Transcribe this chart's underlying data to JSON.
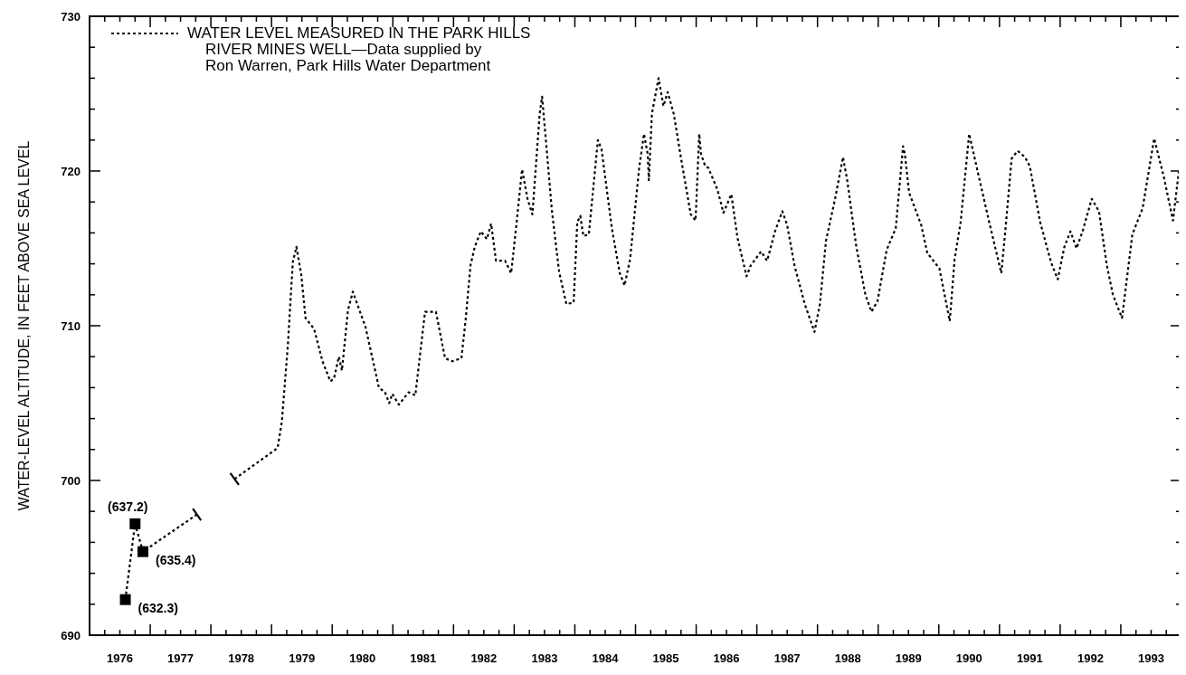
{
  "chart_data": {
    "type": "line",
    "ylabel": "WATER-LEVEL ALTITUDE, IN FEET ABOVE SEA LEVEL",
    "xlim": [
      1976,
      1994
    ],
    "ylim": [
      690,
      730
    ],
    "y2lim": [
      630,
      670
    ],
    "xticks": [
      {
        "value": 1976,
        "label": null
      },
      {
        "value": 1976.25,
        "label": null
      },
      {
        "value": 1976.5,
        "label": "1976"
      },
      {
        "value": 1976.75,
        "label": null
      },
      {
        "value": 1977,
        "label": null
      },
      {
        "value": 1977.25,
        "label": null
      },
      {
        "value": 1977.5,
        "label": "1977"
      },
      {
        "value": 1977.75,
        "label": null
      },
      {
        "value": 1978,
        "label": null
      },
      {
        "value": 1978.25,
        "label": null
      },
      {
        "value": 1978.5,
        "label": "1978"
      },
      {
        "value": 1978.75,
        "label": null
      },
      {
        "value": 1979,
        "label": null
      },
      {
        "value": 1979.25,
        "label": null
      },
      {
        "value": 1979.5,
        "label": "1979"
      },
      {
        "value": 1979.75,
        "label": null
      },
      {
        "value": 1980,
        "label": null
      },
      {
        "value": 1980.25,
        "label": null
      },
      {
        "value": 1980.5,
        "label": "1980"
      },
      {
        "value": 1980.75,
        "label": null
      },
      {
        "value": 1981,
        "label": null
      },
      {
        "value": 1981.25,
        "label": null
      },
      {
        "value": 1981.5,
        "label": "1981"
      },
      {
        "value": 1981.75,
        "label": null
      },
      {
        "value": 1982,
        "label": null
      },
      {
        "value": 1982.25,
        "label": null
      },
      {
        "value": 1982.5,
        "label": "1982"
      },
      {
        "value": 1982.75,
        "label": null
      },
      {
        "value": 1983,
        "label": null
      },
      {
        "value": 1983.25,
        "label": null
      },
      {
        "value": 1983.5,
        "label": "1983"
      },
      {
        "value": 1983.75,
        "label": null
      },
      {
        "value": 1984,
        "label": null
      },
      {
        "value": 1984.25,
        "label": null
      },
      {
        "value": 1984.5,
        "label": "1984"
      },
      {
        "value": 1984.75,
        "label": null
      },
      {
        "value": 1985,
        "label": null
      },
      {
        "value": 1985.25,
        "label": null
      },
      {
        "value": 1985.5,
        "label": "1985"
      },
      {
        "value": 1985.75,
        "label": null
      },
      {
        "value": 1986,
        "label": null
      },
      {
        "value": 1986.25,
        "label": null
      },
      {
        "value": 1986.5,
        "label": "1986"
      },
      {
        "value": 1986.75,
        "label": null
      },
      {
        "value": 1987,
        "label": null
      },
      {
        "value": 1987.25,
        "label": null
      },
      {
        "value": 1987.5,
        "label": "1987"
      },
      {
        "value": 1987.75,
        "label": null
      },
      {
        "value": 1988,
        "label": null
      },
      {
        "value": 1988.25,
        "label": null
      },
      {
        "value": 1988.5,
        "label": "1988"
      },
      {
        "value": 1988.75,
        "label": null
      },
      {
        "value": 1989,
        "label": null
      },
      {
        "value": 1989.25,
        "label": null
      },
      {
        "value": 1989.5,
        "label": "1989"
      },
      {
        "value": 1989.75,
        "label": null
      },
      {
        "value": 1990,
        "label": null
      },
      {
        "value": 1990.25,
        "label": null
      },
      {
        "value": 1990.5,
        "label": "1990"
      },
      {
        "value": 1990.75,
        "label": null
      },
      {
        "value": 1991,
        "label": null
      },
      {
        "value": 1991.25,
        "label": null
      },
      {
        "value": 1991.5,
        "label": "1991"
      },
      {
        "value": 1991.75,
        "label": null
      },
      {
        "value": 1992,
        "label": null
      },
      {
        "value": 1992.25,
        "label": null
      },
      {
        "value": 1992.5,
        "label": "1992"
      },
      {
        "value": 1992.75,
        "label": null
      },
      {
        "value": 1993,
        "label": null
      },
      {
        "value": 1993.25,
        "label": null
      },
      {
        "value": 1993.5,
        "label": "1993"
      },
      {
        "value": 1993.75,
        "label": null
      },
      {
        "value": 1994,
        "label": null
      }
    ],
    "yticks": [
      690,
      {
        "value": 692,
        "label": null
      },
      {
        "value": 694,
        "label": null
      },
      {
        "value": 696,
        "label": null
      },
      {
        "value": 698,
        "label": null
      },
      700,
      {
        "value": 702,
        "label": null
      },
      {
        "value": 704,
        "label": null
      },
      {
        "value": 706,
        "label": null
      },
      {
        "value": 708,
        "label": null
      },
      710,
      {
        "value": 712,
        "label": null
      },
      {
        "value": 714,
        "label": null
      },
      {
        "value": 716,
        "label": null
      },
      {
        "value": 718,
        "label": null
      },
      720,
      {
        "value": 722,
        "label": null
      },
      {
        "value": 724,
        "label": null
      },
      {
        "value": 726,
        "label": null
      },
      {
        "value": 728,
        "label": null
      },
      730
    ],
    "legend": "top left",
    "grid": false,
    "series": [
      {
        "type": "line",
        "axis": "y2",
        "color": "#000000",
        "line_style": "dotted",
        "x": [
          1976.59,
          1976.75,
          1976.88,
          1977.77
        ],
        "values": [
          632.3,
          637.2,
          635.4,
          637.8
        ]
      },
      {
        "type": "scatter",
        "axis": "y2",
        "color": "#000000",
        "marker": "square",
        "x": [
          1976.59,
          1976.75,
          1976.88
        ],
        "values": [
          632.3,
          637.2,
          635.4
        ],
        "value_labels": [
          "(632.3)",
          "(637.2)",
          "(635.4)"
        ]
      },
      {
        "type": "line",
        "name": "WATER LEVEL MEASURED IN THE PARK HILLS\nRIVER MINES WELL—Data supplied by\nRon Warren, Park Hills Water Department",
        "color": "#000000",
        "line_style": "dotted",
        "x": [
          1978.39,
          1979.1,
          1979.17,
          1979.27,
          1979.35,
          1979.41,
          1979.49,
          1979.56,
          1979.7,
          1979.84,
          1979.97,
          1980.03,
          1980.11,
          1980.16,
          1980.26,
          1980.34,
          1980.55,
          1980.77,
          1980.87,
          1980.94,
          1980.99,
          1981.1,
          1981.26,
          1981.37,
          1981.53,
          1981.71,
          1981.86,
          1981.98,
          1982.13,
          1982.2,
          1982.28,
          1982.35,
          1982.45,
          1982.55,
          1982.62,
          1982.7,
          1982.85,
          1982.95,
          1983.03,
          1983.13,
          1983.22,
          1983.3,
          1983.42,
          1983.46,
          1983.52,
          1983.62,
          1983.74,
          1983.86,
          1983.98,
          1984.04,
          1984.09,
          1984.14,
          1984.23,
          1984.38,
          1984.44,
          1984.61,
          1984.74,
          1984.82,
          1984.91,
          1985.06,
          1985.14,
          1985.2,
          1985.22,
          1985.27,
          1985.38,
          1985.46,
          1985.53,
          1985.63,
          1985.76,
          1985.91,
          1985.99,
          1986.05,
          1986.08,
          1986.15,
          1986.2,
          1986.35,
          1986.45,
          1986.58,
          1986.68,
          1986.83,
          1986.9,
          1987.07,
          1987.17,
          1987.3,
          1987.42,
          1987.5,
          1987.62,
          1987.79,
          1987.95,
          1988.04,
          1988.14,
          1988.29,
          1988.42,
          1988.49,
          1988.64,
          1988.79,
          1988.89,
          1988.99,
          1989.14,
          1989.29,
          1989.41,
          1989.44,
          1989.51,
          1989.71,
          1989.81,
          1990.01,
          1990.18,
          1990.26,
          1990.36,
          1990.5,
          1990.65,
          1990.83,
          1991.03,
          1991.1,
          1991.2,
          1991.3,
          1991.42,
          1991.5,
          1991.67,
          1991.85,
          1991.96,
          1992.07,
          1992.17,
          1992.27,
          1992.37,
          1992.52,
          1992.64,
          1992.77,
          1992.87,
          1993.02,
          1993.19,
          1993.36,
          1993.55,
          1993.71,
          1993.86,
          1993.96,
          1994.0
        ],
        "values": [
          700.1,
          702.1,
          703.8,
          708.8,
          714.1,
          715.1,
          713.3,
          710.5,
          709.8,
          707.7,
          706.4,
          706.6,
          708.0,
          707.1,
          711.0,
          712.2,
          709.9,
          706.0,
          705.7,
          705.0,
          705.6,
          704.9,
          705.7,
          705.5,
          710.9,
          710.9,
          707.9,
          707.7,
          707.9,
          710.4,
          713.9,
          715.1,
          716.1,
          715.6,
          716.6,
          714.2,
          714.2,
          713.4,
          716.3,
          720.1,
          718.2,
          717.2,
          723.7,
          724.8,
          722.1,
          717.5,
          713.5,
          711.4,
          711.5,
          716.7,
          717.1,
          715.8,
          715.9,
          722.0,
          721.4,
          716.3,
          713.4,
          712.6,
          714.3,
          720.2,
          722.4,
          721.1,
          719.4,
          723.7,
          726.0,
          724.2,
          725.1,
          723.7,
          720.6,
          717.2,
          716.8,
          722.4,
          721.1,
          720.3,
          720.2,
          718.8,
          717.3,
          718.5,
          715.7,
          713.2,
          713.9,
          714.8,
          714.2,
          716.1,
          717.4,
          716.5,
          713.9,
          711.4,
          709.6,
          711.4,
          715.5,
          718.2,
          720.9,
          719.4,
          715.1,
          712.0,
          710.9,
          711.6,
          714.9,
          716.3,
          721.6,
          721.1,
          718.6,
          716.5,
          714.7,
          713.7,
          710.3,
          714.3,
          716.7,
          722.4,
          719.8,
          716.7,
          713.4,
          716.3,
          720.8,
          721.3,
          720.9,
          720.3,
          716.7,
          714.1,
          713.0,
          715.1,
          716.1,
          715.0,
          716.1,
          718.2,
          717.4,
          713.9,
          712.0,
          710.5,
          715.9,
          717.6,
          722.1,
          719.6,
          716.8,
          720.1,
          719.2
        ]
      }
    ]
  }
}
